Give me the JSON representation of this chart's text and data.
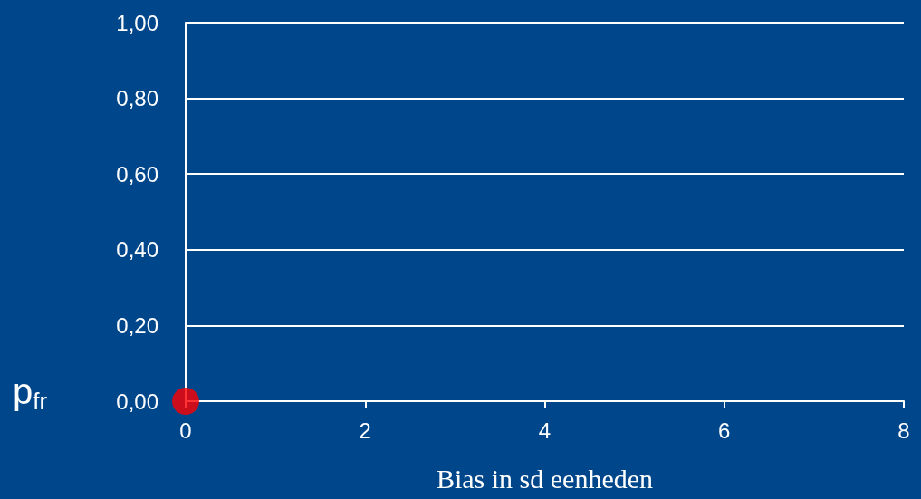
{
  "chart_data": {
    "type": "scatter",
    "xlabel": "Bias in sd eenheden",
    "ylabel": "p$_{fr}$",
    "x": [
      0
    ],
    "series": [
      {
        "color": "#ff0000",
        "values": [
          0
        ]
      }
    ],
    "xlim": [
      0,
      8
    ],
    "xticks": [
      0,
      2,
      4,
      6,
      8
    ],
    "ylim": [
      0,
      1
    ],
    "yticks": [
      {
        "value": 0,
        "label": "0,00"
      },
      {
        "value": 0.2,
        "label": "0,20"
      },
      {
        "value": 0.4,
        "label": "0,40"
      },
      {
        "value": 0.6,
        "label": "0,60"
      },
      {
        "value": 0.8,
        "label": "0,80"
      },
      {
        "value": 1,
        "label": "1,00"
      }
    ],
    "grid": "y",
    "marker": "circle"
  }
}
